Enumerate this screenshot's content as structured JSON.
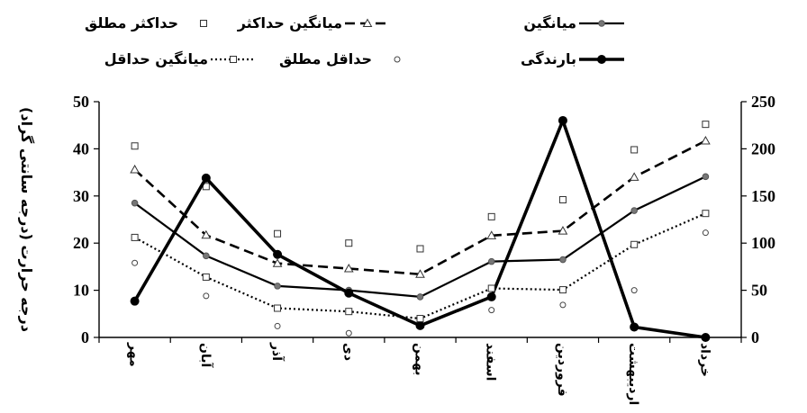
{
  "chart_data": {
    "type": "line",
    "ylabel_left": "درجه حرارت (درجه سانتی گراد)",
    "ylim_left": [
      0,
      50
    ],
    "ylim_right": [
      0,
      250
    ],
    "left_ticks": [
      "0",
      "10",
      "20",
      "30",
      "40",
      "50"
    ],
    "right_ticks": [
      "0",
      "50",
      "100",
      "150",
      "200",
      "250"
    ],
    "categories": [
      "مهر",
      "آبان",
      "آذر",
      "دی",
      "بهمن",
      "اسفند",
      "فروردین",
      "اردیبهشت",
      "خرداد"
    ],
    "legend_position": "top",
    "series": [
      {
        "name": "میانگین",
        "axis": "left",
        "style": "solid-thin",
        "marker": "dot",
        "values": [
          28.5,
          17.3,
          10.9,
          10.0,
          8.6,
          16.1,
          16.5,
          26.9,
          34.1
        ]
      },
      {
        "name": "میانگین حداکثر",
        "axis": "left",
        "style": "dashed",
        "marker": "triangle",
        "values": [
          35.6,
          21.7,
          15.7,
          14.6,
          13.4,
          21.6,
          22.6,
          34.0,
          41.7
        ]
      },
      {
        "name": "حداکثر مطلق",
        "axis": "left",
        "style": "none",
        "marker": "square",
        "values": [
          40.6,
          32.0,
          22.0,
          20.0,
          18.8,
          25.6,
          29.2,
          39.8,
          45.2
        ]
      },
      {
        "name": "بارندگی",
        "axis": "right",
        "style": "solid-thick",
        "marker": "bigdot",
        "values": [
          38.5,
          169.0,
          88.0,
          47.0,
          12.5,
          43.0,
          230.0,
          11.0,
          0.0
        ]
      },
      {
        "name": "حداقل مطلق",
        "axis": "left",
        "style": "none",
        "marker": "circle",
        "values": [
          15.8,
          8.8,
          2.4,
          0.9,
          4.0,
          5.8,
          6.9,
          10.0,
          22.2
        ]
      },
      {
        "name": "میانگین حداقل",
        "axis": "left",
        "style": "dotted",
        "marker": "square",
        "values": [
          21.2,
          12.8,
          6.2,
          5.5,
          4.0,
          10.4,
          10.1,
          19.7,
          26.3
        ]
      }
    ]
  }
}
